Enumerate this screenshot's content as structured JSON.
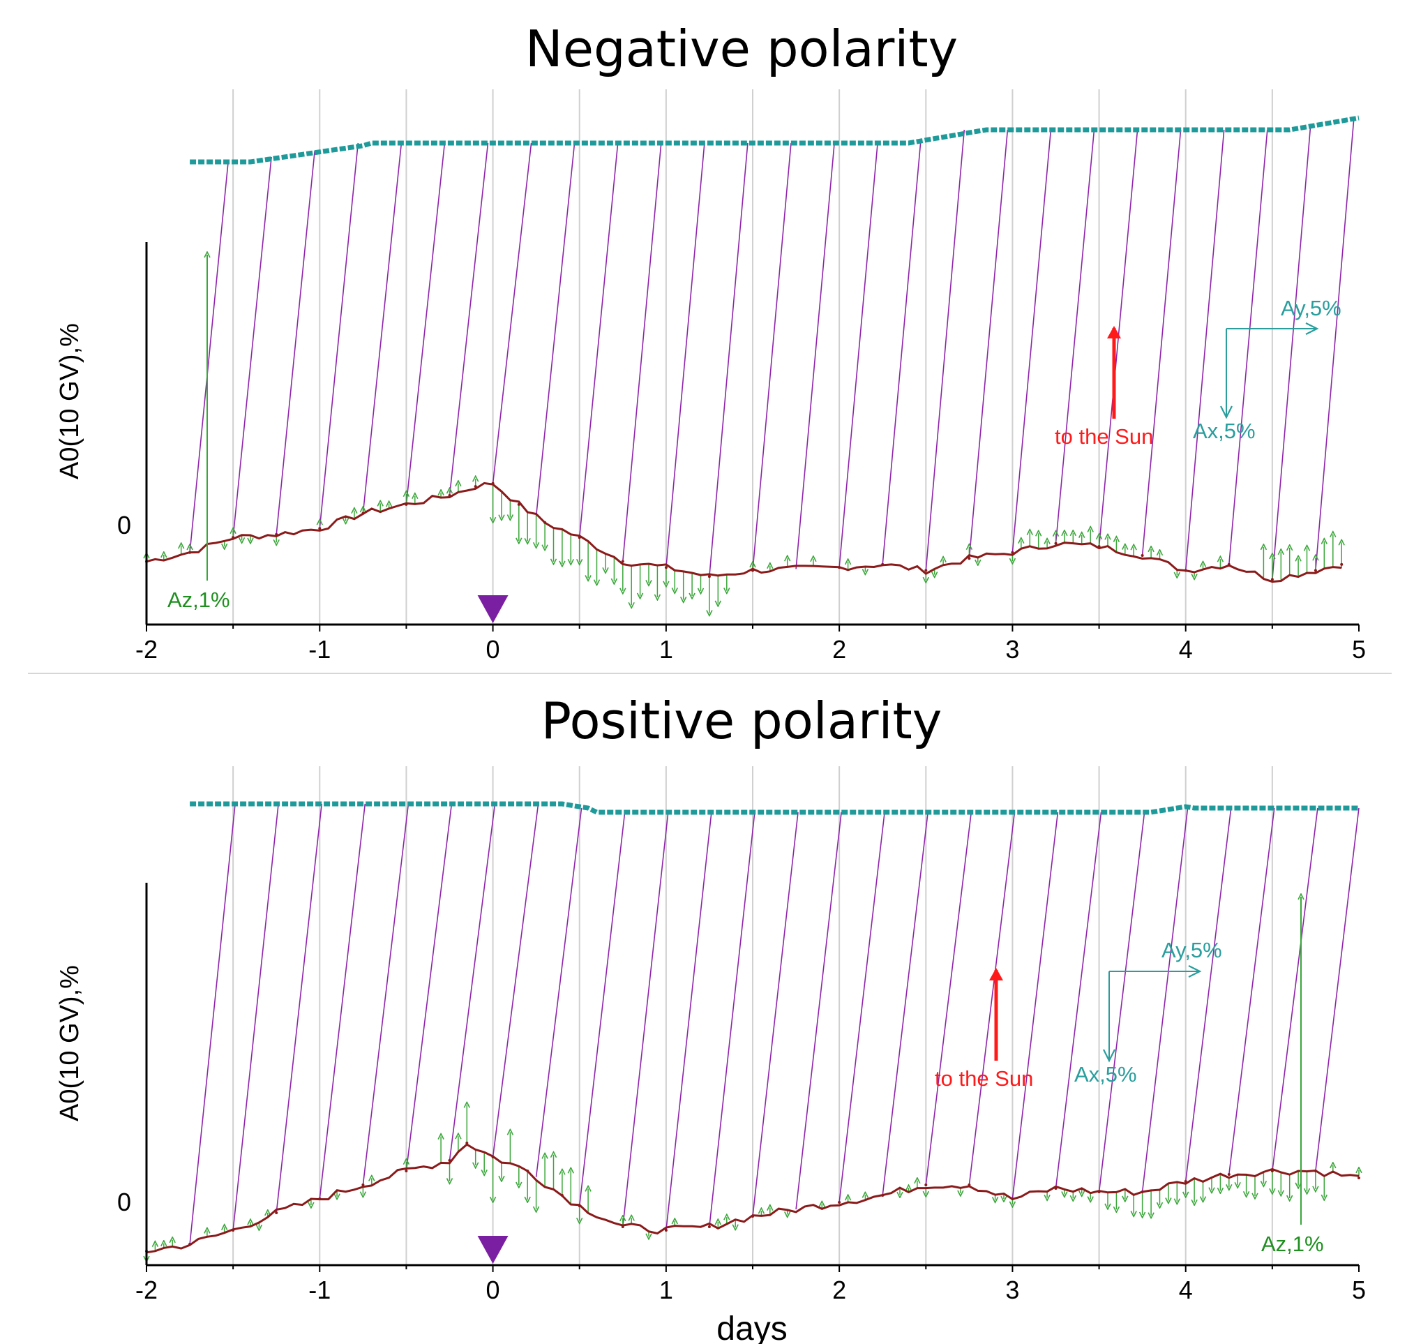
{
  "colors": {
    "a0_line": "#8b1a1a",
    "az_arrows": "#3aa63a",
    "axy_vectors": "#8e24aa",
    "axy_chain": "#1f9a9a",
    "sun_arrow": "#ff1a1a",
    "scale_arrows": "#2a9d9d",
    "event_marker": "#7b1fa2",
    "grid": "#d0d0d0"
  },
  "chart_data": [
    {
      "type": "line",
      "title": "Negative polarity",
      "xlabel": "",
      "ylabel": "A0(10 GV),%",
      "xlim": [
        -2,
        5
      ],
      "xticks": [
        "-2",
        "-1",
        "0",
        "1",
        "2",
        "3",
        "4",
        "5"
      ],
      "yticks": [
        "0"
      ],
      "grid": "vertical lines every 0.5 day",
      "event_marker_day": 0,
      "series": [
        {
          "x": [
            -2.0,
            -1.75,
            -1.5,
            -1.25,
            -1.0,
            -0.75,
            -0.5,
            -0.25,
            -0.1,
            0.0,
            0.15,
            0.3,
            0.5,
            0.75,
            1.0,
            1.25,
            1.5,
            2.0,
            2.25,
            2.5,
            2.75,
            3.0,
            3.25,
            3.5,
            3.75,
            4.0,
            4.25,
            4.5,
            4.75,
            4.9
          ],
          "y": [
            -1.2,
            -0.9,
            -0.4,
            -0.3,
            -0.1,
            0.4,
            0.7,
            1.0,
            1.3,
            1.4,
            0.7,
            0.1,
            -0.4,
            -1.2,
            -1.4,
            -1.7,
            -1.5,
            -1.4,
            -1.3,
            -1.5,
            -1.1,
            -0.9,
            -0.6,
            -0.7,
            -1.0,
            -1.5,
            -1.3,
            -1.8,
            -1.5,
            -1.3
          ]
        }
      ],
      "annotations": {
        "az_label": "Az,1%",
        "sun_label": "to the Sun",
        "ax_label": "Ax,5%",
        "ay_label": "Ay,5%"
      }
    },
    {
      "type": "line",
      "title": "Positive polarity",
      "xlabel": "days",
      "ylabel": "A0(10 GV),%",
      "xlim": [
        -2,
        5
      ],
      "xticks": [
        "-2",
        "-1",
        "0",
        "1",
        "2",
        "3",
        "4",
        "5"
      ],
      "yticks": [
        "0"
      ],
      "grid": "vertical lines every 0.5 day",
      "event_marker_day": 0,
      "series": [
        {
          "x": [
            -2.0,
            -1.75,
            -1.5,
            -1.25,
            -1.0,
            -0.75,
            -0.5,
            -0.25,
            -0.15,
            0.0,
            0.2,
            0.4,
            0.5,
            0.75,
            1.0,
            1.25,
            1.5,
            2.0,
            2.25,
            2.5,
            2.75,
            3.0,
            3.25,
            3.5,
            3.75,
            4.0,
            4.25,
            4.5,
            4.75,
            5.0
          ],
          "y": [
            -1.4,
            -1.2,
            -0.8,
            -0.3,
            0.1,
            0.5,
            0.9,
            1.2,
            1.7,
            1.3,
            0.9,
            0.2,
            -0.1,
            -0.7,
            -0.8,
            -0.7,
            -0.4,
            0.0,
            0.2,
            0.5,
            0.5,
            0.1,
            0.4,
            0.3,
            0.3,
            0.6,
            0.8,
            0.9,
            0.9,
            0.7
          ]
        }
      ],
      "annotations": {
        "az_label": "Az,1%",
        "sun_label": "to the Sun",
        "ax_label": "Ax,5%",
        "ay_label": "Ay,5%"
      }
    }
  ]
}
